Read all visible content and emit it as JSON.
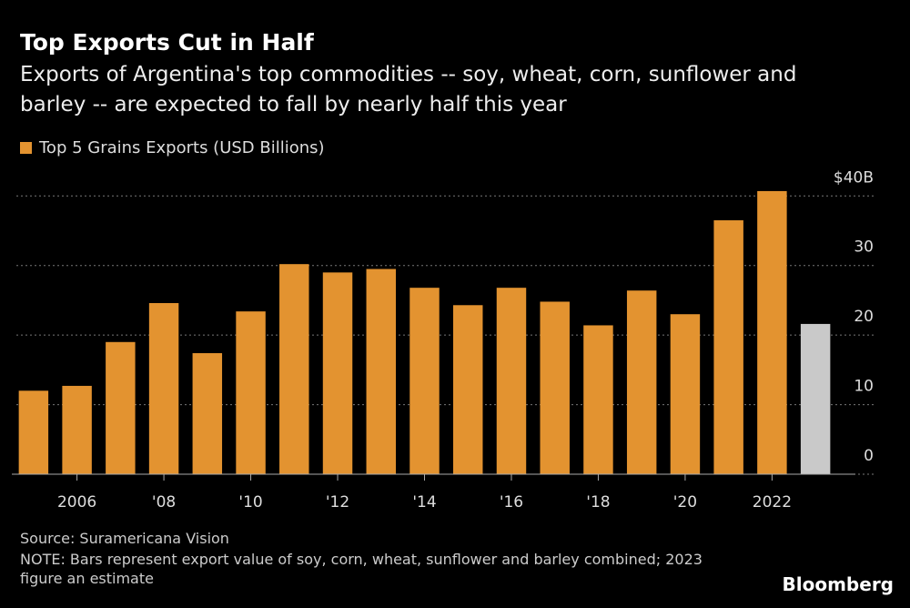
{
  "chart_data": {
    "type": "bar",
    "title": "Top Exports Cut in Half",
    "subtitle": "Exports of Argentina's top commodities -- soy, wheat, corn, sunflower and barley -- are expected to fall by nearly half this year",
    "series": [
      {
        "name": "Top 5 Grains Exports (USD Billions)",
        "color": "#e39330",
        "colors": [
          "#e39330",
          "#e39330",
          "#e39330",
          "#e39330",
          "#e39330",
          "#e39330",
          "#e39330",
          "#e39330",
          "#e39330",
          "#e39330",
          "#e39330",
          "#e39330",
          "#e39330",
          "#e39330",
          "#e39330",
          "#e39330",
          "#e39330",
          "#e39330",
          "#c9c9c9"
        ],
        "values": [
          12.0,
          12.7,
          19.0,
          24.6,
          17.4,
          23.4,
          30.2,
          29.0,
          29.5,
          26.8,
          24.3,
          26.8,
          24.8,
          21.4,
          26.4,
          23.0,
          36.5,
          40.7,
          21.6
        ]
      }
    ],
    "categories": [
      null,
      "2006",
      null,
      "'08",
      null,
      "'10",
      null,
      "'12",
      null,
      "'14",
      null,
      "'16",
      null,
      "'18",
      null,
      "'20",
      null,
      "2022",
      null
    ],
    "ylim": [
      0,
      42
    ],
    "yticks": [
      0,
      10,
      20,
      30,
      {
        "value": 40,
        "label": "$40B"
      }
    ],
    "grid": true,
    "source": "Source: Suramericana Vision",
    "note": "NOTE: Bars represent export value of soy, corn, wheat, sunflower and barley combined; 2023 figure an estimate",
    "brand": "Bloomberg"
  }
}
